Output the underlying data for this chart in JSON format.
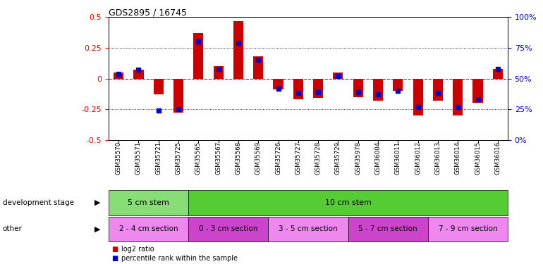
{
  "title": "GDS2895 / 16745",
  "samples": [
    "GSM35570",
    "GSM35571",
    "GSM35721",
    "GSM35725",
    "GSM35565",
    "GSM35567",
    "GSM35568",
    "GSM35569",
    "GSM35726",
    "GSM35727",
    "GSM35728",
    "GSM35729",
    "GSM35978",
    "GSM36004",
    "GSM36011",
    "GSM36012",
    "GSM36013",
    "GSM36014",
    "GSM36015",
    "GSM36016"
  ],
  "log2_ratio": [
    0.05,
    0.07,
    -0.13,
    -0.28,
    0.37,
    0.1,
    0.47,
    0.18,
    -0.09,
    -0.17,
    -0.16,
    0.05,
    -0.15,
    -0.18,
    -0.1,
    -0.3,
    -0.18,
    -0.3,
    -0.2,
    0.08
  ],
  "percentile": [
    54,
    57,
    24,
    25,
    80,
    58,
    79,
    65,
    42,
    38,
    39,
    52,
    39,
    37,
    40,
    27,
    38,
    27,
    33,
    58
  ],
  "ylim_left": [
    -0.5,
    0.5
  ],
  "ylim_right": [
    0,
    100
  ],
  "yticks_left": [
    -0.5,
    -0.25,
    0,
    0.25,
    0.5
  ],
  "yticks_right": [
    0,
    25,
    50,
    75,
    100
  ],
  "bar_color": "#cc0000",
  "pct_color": "#0000cc",
  "zero_line_color": "#cc0000",
  "dev_stage_groups": [
    {
      "label": "5 cm stem",
      "start": 0,
      "end": 4,
      "color": "#88dd77"
    },
    {
      "label": "10 cm stem",
      "start": 4,
      "end": 20,
      "color": "#55cc33"
    }
  ],
  "other_groups": [
    {
      "label": "2 - 4 cm section",
      "start": 0,
      "end": 4,
      "color": "#ee88ee"
    },
    {
      "label": "0 - 3 cm section",
      "start": 4,
      "end": 8,
      "color": "#cc44cc"
    },
    {
      "label": "3 - 5 cm section",
      "start": 8,
      "end": 12,
      "color": "#ee88ee"
    },
    {
      "label": "5 - 7 cm section",
      "start": 12,
      "end": 16,
      "color": "#cc44cc"
    },
    {
      "label": "7 - 9 cm section",
      "start": 16,
      "end": 20,
      "color": "#ee88ee"
    }
  ],
  "dev_label": "development stage",
  "other_label": "other",
  "legend_red_label": "log2 ratio",
  "legend_blue_label": "percentile rank within the sample"
}
